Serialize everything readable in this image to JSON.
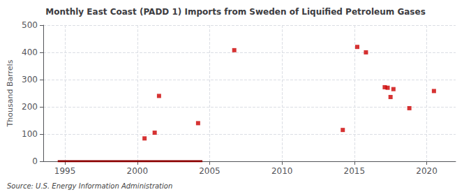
{
  "chart_data": {
    "type": "scatter",
    "title": "Monthly East Coast (PADD 1) Imports from Sweden of Liquified Petroleum Gases",
    "ylabel": "Thousand Barrels",
    "annotations": [
      "Source: U.S. Energy Information Administration"
    ],
    "xlim": [
      1993.5,
      2022
    ],
    "xticks": [
      1995,
      2000,
      2005,
      2010,
      2015,
      2020
    ],
    "ylim": [
      0,
      500
    ],
    "yticks": [
      0,
      100,
      200,
      300,
      400,
      500
    ],
    "grid": true,
    "series": [
      {
        "type": "line",
        "color": "#8b0000",
        "line_style": "solid",
        "x": [
          1994.5,
          2004.5
        ],
        "values": [
          0,
          0
        ]
      },
      {
        "type": "scatter",
        "color": "#cc0000",
        "marker": "square",
        "x": [
          2000.5,
          2001.2,
          2001.5,
          2004.2,
          2006.7,
          2014.2,
          2015.2,
          2015.8,
          2017.1,
          2017.3,
          2017.5,
          2017.7,
          2018.8,
          2020.5
        ],
        "values": [
          84,
          105,
          240,
          140,
          408,
          115,
          420,
          400,
          272,
          270,
          236,
          265,
          195,
          258
        ]
      }
    ]
  }
}
